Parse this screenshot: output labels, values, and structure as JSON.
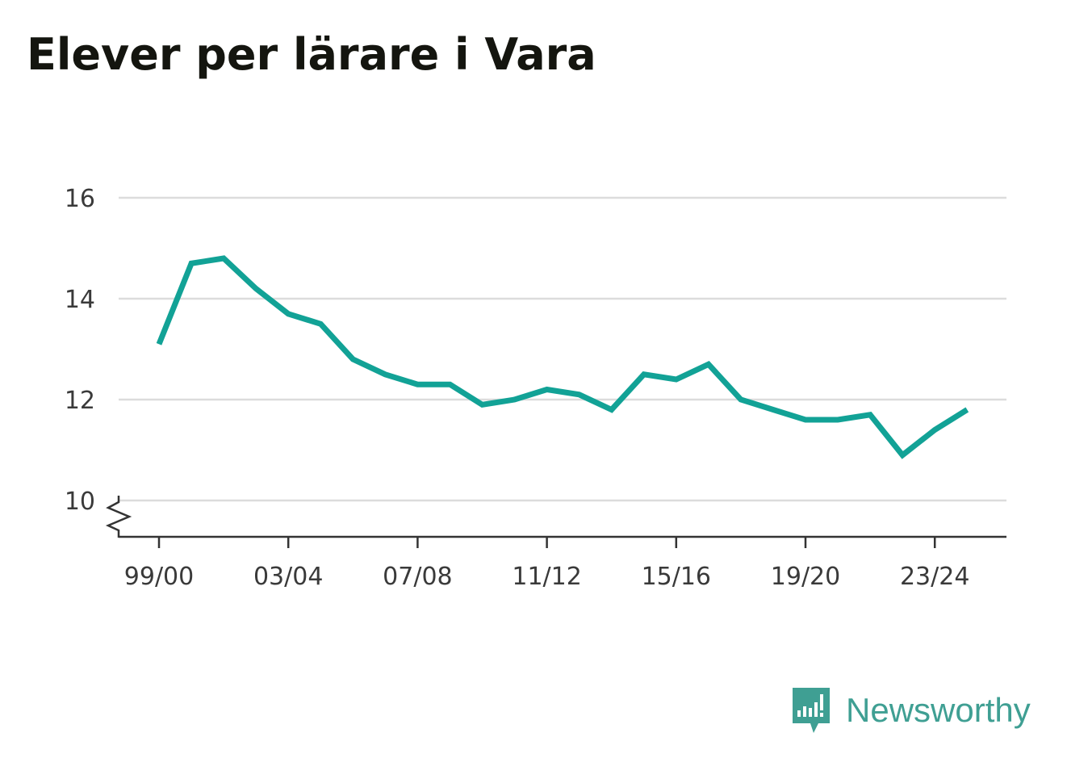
{
  "title": "Elever per lärare i Vara",
  "brand": {
    "name": "Newsworthy",
    "icon": "newsworthy-logo-icon",
    "color": "#3f9f93"
  },
  "colors": {
    "line": "#12a296",
    "grid": "#dcdcdc",
    "axis": "#333333"
  },
  "chart_data": {
    "type": "line",
    "title": "Elever per lärare i Vara",
    "xlabel": "",
    "ylabel": "",
    "ylim": [
      9.3,
      16
    ],
    "y_axis_break": true,
    "yticks": [
      10,
      12,
      14,
      16
    ],
    "x_tick_labels": [
      "99/00",
      "03/04",
      "07/08",
      "11/12",
      "15/16",
      "19/20",
      "23/24"
    ],
    "x_tick_indices": [
      0,
      4,
      8,
      12,
      16,
      20,
      24
    ],
    "grid": true,
    "x": [
      "99/00",
      "00/01",
      "01/02",
      "02/03",
      "03/04",
      "04/05",
      "05/06",
      "06/07",
      "07/08",
      "08/09",
      "09/10",
      "10/11",
      "11/12",
      "12/13",
      "13/14",
      "14/15",
      "15/16",
      "16/17",
      "17/18",
      "18/19",
      "19/20",
      "20/21",
      "21/22",
      "22/23",
      "23/24",
      "24/25"
    ],
    "series": [
      {
        "values": [
          13.1,
          14.7,
          14.8,
          14.2,
          13.7,
          13.5,
          12.8,
          12.5,
          12.3,
          12.3,
          11.9,
          12.0,
          12.2,
          12.1,
          11.8,
          12.5,
          12.4,
          12.7,
          12.0,
          11.8,
          11.6,
          11.6,
          11.7,
          10.9,
          11.4,
          11.8
        ]
      }
    ]
  }
}
